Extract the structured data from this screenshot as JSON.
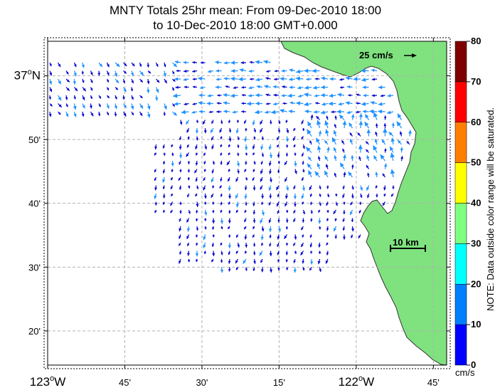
{
  "title": {
    "line1": "MNTY Totals 25hr mean: From 09-Dec-2010 18:00",
    "line2": "to 10-Dec-2010 18:00 GMT+0.000"
  },
  "axes": {
    "x_ticks": [
      {
        "lon": -123.0,
        "label": "123",
        "suffix": "W",
        "big": true
      },
      {
        "lon": -122.75,
        "label": "45'",
        "big": false
      },
      {
        "lon": -122.5,
        "label": "30'",
        "big": false
      },
      {
        "lon": -122.25,
        "label": "15'",
        "big": false
      },
      {
        "lon": -122.0,
        "label": "122",
        "suffix": "W",
        "big": true
      },
      {
        "lon": -121.75,
        "label": "45'",
        "big": false
      }
    ],
    "y_ticks": [
      {
        "lat": 37.0,
        "label": "37",
        "suffix": "N",
        "big": true
      },
      {
        "lat": 36.8333,
        "label": "50'",
        "big": false
      },
      {
        "lat": 36.6667,
        "label": "40'",
        "big": false
      },
      {
        "lat": 36.5,
        "label": "30'",
        "big": false
      },
      {
        "lat": 36.3333,
        "label": "20'",
        "big": false
      }
    ]
  },
  "reference_vector": {
    "label": "25 cm/s"
  },
  "scale_bar": {
    "label": "10 km"
  },
  "colorbar": {
    "unit": "cm/s",
    "note": "NOTE: Data outside color range will be saturated.",
    "ticks": [
      "0",
      "10",
      "20",
      "30",
      "40",
      "50",
      "60",
      "70",
      "80"
    ],
    "colors": [
      "#0000ff",
      "#007fff",
      "#00ffff",
      "#80ff80",
      "#ffff00",
      "#ff7f00",
      "#ff0000",
      "#7f0000"
    ]
  },
  "colors": {
    "land": "#7fe27f",
    "grid": "#b0b0b0",
    "vector_fast": "#1e90ff",
    "vector_slow": "#0000cd"
  }
}
